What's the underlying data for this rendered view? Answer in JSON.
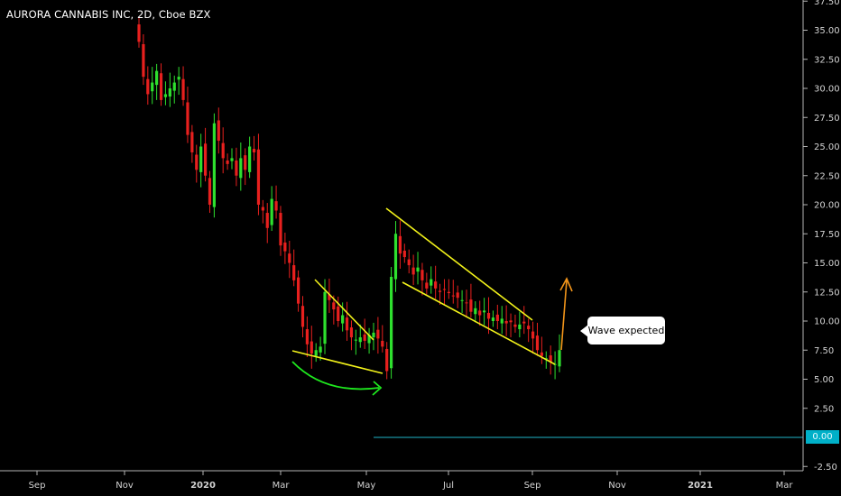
{
  "header": {
    "title": "AURORA CANNABIS INC, 2D, Cboe BZX"
  },
  "annotation": {
    "callout_text": "Wave expected"
  },
  "colors": {
    "background": "#000000",
    "up_candle": "#2ee02e",
    "down_candle": "#e8201e",
    "triangle_lines": "#f2f21a",
    "curved_arrow": "#1ee81e",
    "target_arrow": "#f2951a",
    "zero_line": "#1fb5c9"
  },
  "chart_data": {
    "type": "candlestick",
    "title": "AURORA CANNABIS INC, 2D, Cboe BZX",
    "x_tick_labels": [
      "Sep",
      "Nov",
      "2020",
      "Mar",
      "May",
      "Jul",
      "Sep",
      "Nov",
      "2021",
      "Mar"
    ],
    "y_tick_labels": [
      "37.50",
      "35.00",
      "32.50",
      "30.00",
      "27.50",
      "25.00",
      "22.50",
      "20.00",
      "17.50",
      "15.00",
      "12.50",
      "10.00",
      "7.50",
      "5.00",
      "2.50",
      "-2.50"
    ],
    "price_label": "0.00",
    "ylim": [
      -3,
      38
    ],
    "grid": false,
    "horizontal_line": 0.0,
    "closes": [
      34.0,
      31.0,
      29.5,
      30.5,
      31.5,
      29.0,
      29.5,
      30.0,
      30.5,
      31.0,
      29.0,
      26.0,
      24.5,
      23.0,
      25.0,
      22.5,
      20.0,
      27.0,
      25.5,
      24.0,
      23.5,
      24.0,
      22.5,
      24.0,
      23.0,
      25.0,
      24.5,
      20.0,
      19.5,
      18.0,
      20.5,
      19.5,
      16.5,
      16.0,
      15.0,
      13.5,
      11.5,
      9.5,
      8.0,
      7.2,
      7.5,
      7.8,
      12.5,
      11.8,
      11.0,
      10.0,
      10.5,
      9.2,
      8.6,
      8.4,
      8.6,
      8.3,
      8.8,
      9.0,
      8.5,
      7.8,
      5.7,
      13.8,
      17.5,
      15.8,
      15.5,
      14.8,
      14.0,
      14.6,
      13.5,
      12.8,
      13.6,
      12.8,
      12.5,
      12.7,
      12.4,
      12.2,
      12.0,
      11.8,
      11.6,
      10.8,
      11.1,
      10.5,
      10.9,
      10.2,
      10.3,
      10.0,
      10.2,
      9.8,
      9.9,
      9.5,
      9.7,
      9.8,
      9.3,
      8.5,
      7.5,
      7.0,
      6.8,
      6.5,
      6.3,
      7.5
    ],
    "annotations": [
      "descending triangle Mar–May",
      "descending wedge May–Sep",
      "curved green arrow",
      "orange up arrow",
      "Wave expected"
    ]
  }
}
